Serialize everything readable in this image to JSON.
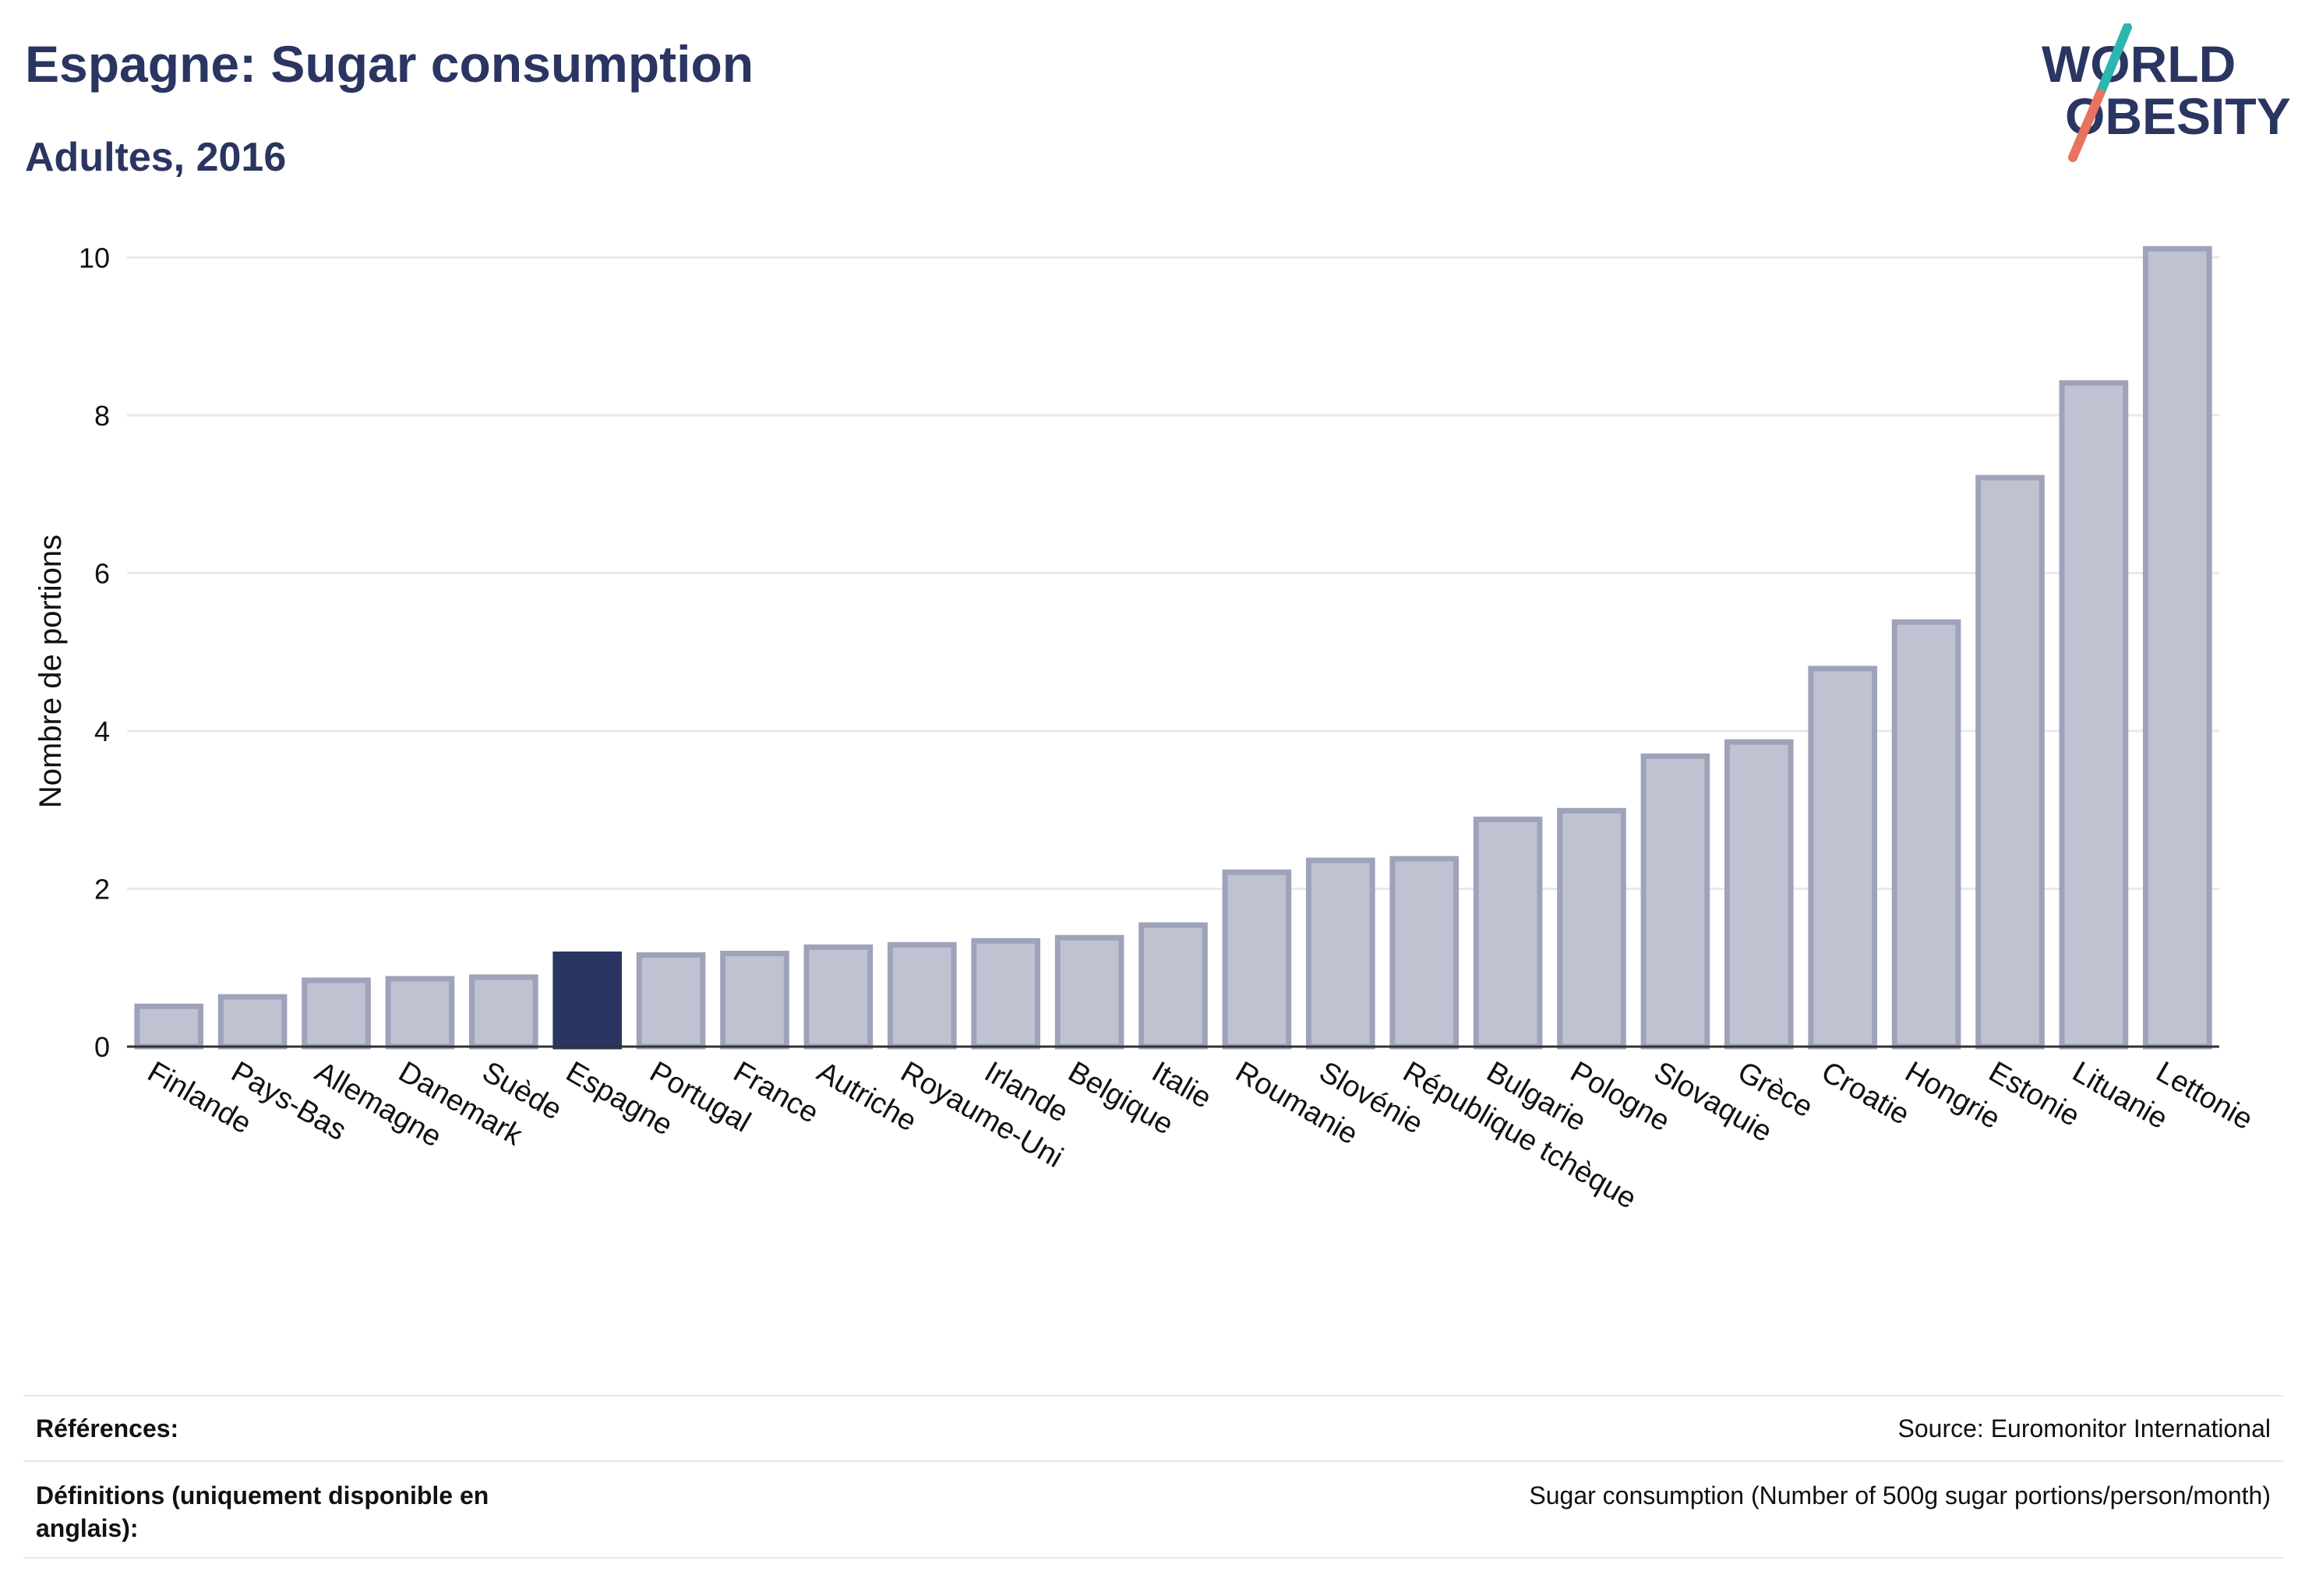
{
  "header": {
    "title": "Espagne: Sugar consumption",
    "subtitle": "Adultes, 2016"
  },
  "logo": {
    "line1": "WORLD",
    "line2": "OBESITY",
    "colors": {
      "text": "#2a3561",
      "slash_top": "#2ab7b0",
      "slash_bottom": "#e8735f"
    }
  },
  "colors": {
    "highlight_bar": "#2a3561",
    "bar_fill": "#bfc2d0",
    "bar_stroke": "#9ea3ba",
    "grid": "#e8e9ef",
    "axis": "#333333"
  },
  "chart_data": {
    "type": "bar",
    "ylabel": "Nombre de portions",
    "xlabel": "",
    "ylim": [
      0,
      10.3
    ],
    "yticks": [
      0,
      2,
      4,
      6,
      8,
      10
    ],
    "grid": true,
    "highlight": "Espagne",
    "categories": [
      "Finlande",
      "Pays-Bas",
      "Allemagne",
      "Danemark",
      "Suède",
      "Espagne",
      "Portugal",
      "France",
      "Autriche",
      "Royaume-Uni",
      "Irlande",
      "Belgique",
      "Italie",
      "Roumanie",
      "Slovénie",
      "République tchèque",
      "Bulgarie",
      "Pologne",
      "Slovaquie",
      "Grèce",
      "Croatie",
      "Hongrie",
      "Estonie",
      "Lituanie",
      "Lettonie"
    ],
    "values": [
      0.51,
      0.63,
      0.84,
      0.86,
      0.88,
      1.17,
      1.16,
      1.18,
      1.26,
      1.29,
      1.34,
      1.38,
      1.54,
      2.21,
      2.36,
      2.38,
      2.88,
      2.99,
      3.68,
      3.86,
      4.79,
      5.38,
      7.21,
      8.41,
      10.11
    ]
  },
  "references": {
    "label": "Références:",
    "value": "Source: Euromonitor International"
  },
  "definitions": {
    "label": "Définitions (uniquement disponible en anglais):",
    "value": "Sugar consumption (Number of 500g sugar portions/person/month)"
  }
}
